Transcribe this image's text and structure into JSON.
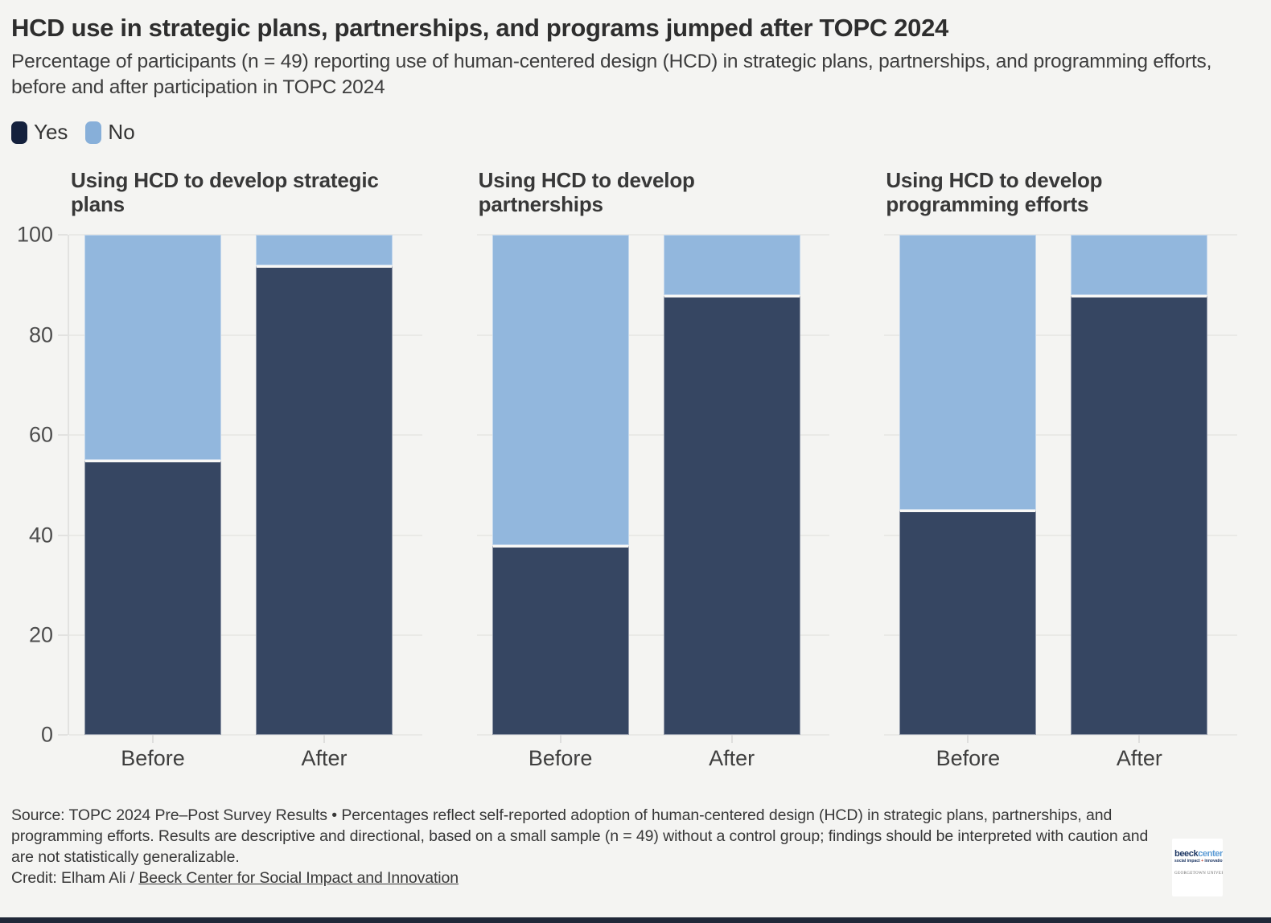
{
  "header": {
    "title": "HCD use in strategic plans, partnerships, and programs jumped after TOPC 2024",
    "subtitle": "Percentage of participants (n = 49) reporting use of human-centered design (HCD) in strategic plans, partnerships, and programming efforts, before and after participation in TOPC 2024"
  },
  "legend": {
    "position": "top-left",
    "items": [
      {
        "label": "Yes",
        "color": "#14213d"
      },
      {
        "label": "No",
        "color": "#87afd9"
      }
    ]
  },
  "chart_data": {
    "type": "bar",
    "stacked": true,
    "unit": "percent",
    "grid": true,
    "ylim": [
      0,
      100
    ],
    "yticks": [
      0,
      20,
      40,
      60,
      80,
      100
    ],
    "xlabel": "",
    "ylabel": "",
    "categories": [
      "Before",
      "After"
    ],
    "colors": {
      "Yes": "#364662",
      "No": "#92b7dd"
    },
    "panels": [
      {
        "title": "Using HCD to develop strategic plans",
        "series": [
          {
            "name": "Yes",
            "values": [
              55,
              94
            ]
          },
          {
            "name": "No",
            "values": [
              45,
              6
            ]
          }
        ]
      },
      {
        "title": "Using HCD to develop partnerships",
        "series": [
          {
            "name": "Yes",
            "values": [
              38,
              88
            ]
          },
          {
            "name": "No",
            "values": [
              62,
              12
            ]
          }
        ]
      },
      {
        "title": "Using HCD to develop programming efforts",
        "series": [
          {
            "name": "Yes",
            "values": [
              45,
              88
            ]
          },
          {
            "name": "No",
            "values": [
              55,
              12
            ]
          }
        ]
      }
    ]
  },
  "footer": {
    "source": "Source: TOPC 2024 Pre–Post Survey Results • Percentages reflect self-reported adoption of human-centered design (HCD) in strategic plans, partnerships, and programming efforts. Results are descriptive and directional, based on a small sample (n = 49) without a control group; findings should be interpreted with caution and are not statistically generalizable.",
    "credit_prefix": "Credit: Elham Ali / ",
    "credit_link": "Beeck Center for Social Impact and Innovation"
  },
  "logo": {
    "bold": "beeck",
    "light": "center",
    "tagline_left": "social impact",
    "tagline_plus": "+",
    "tagline_right": "innovation",
    "institution": "GEORGETOWN UNIVERSITY"
  }
}
